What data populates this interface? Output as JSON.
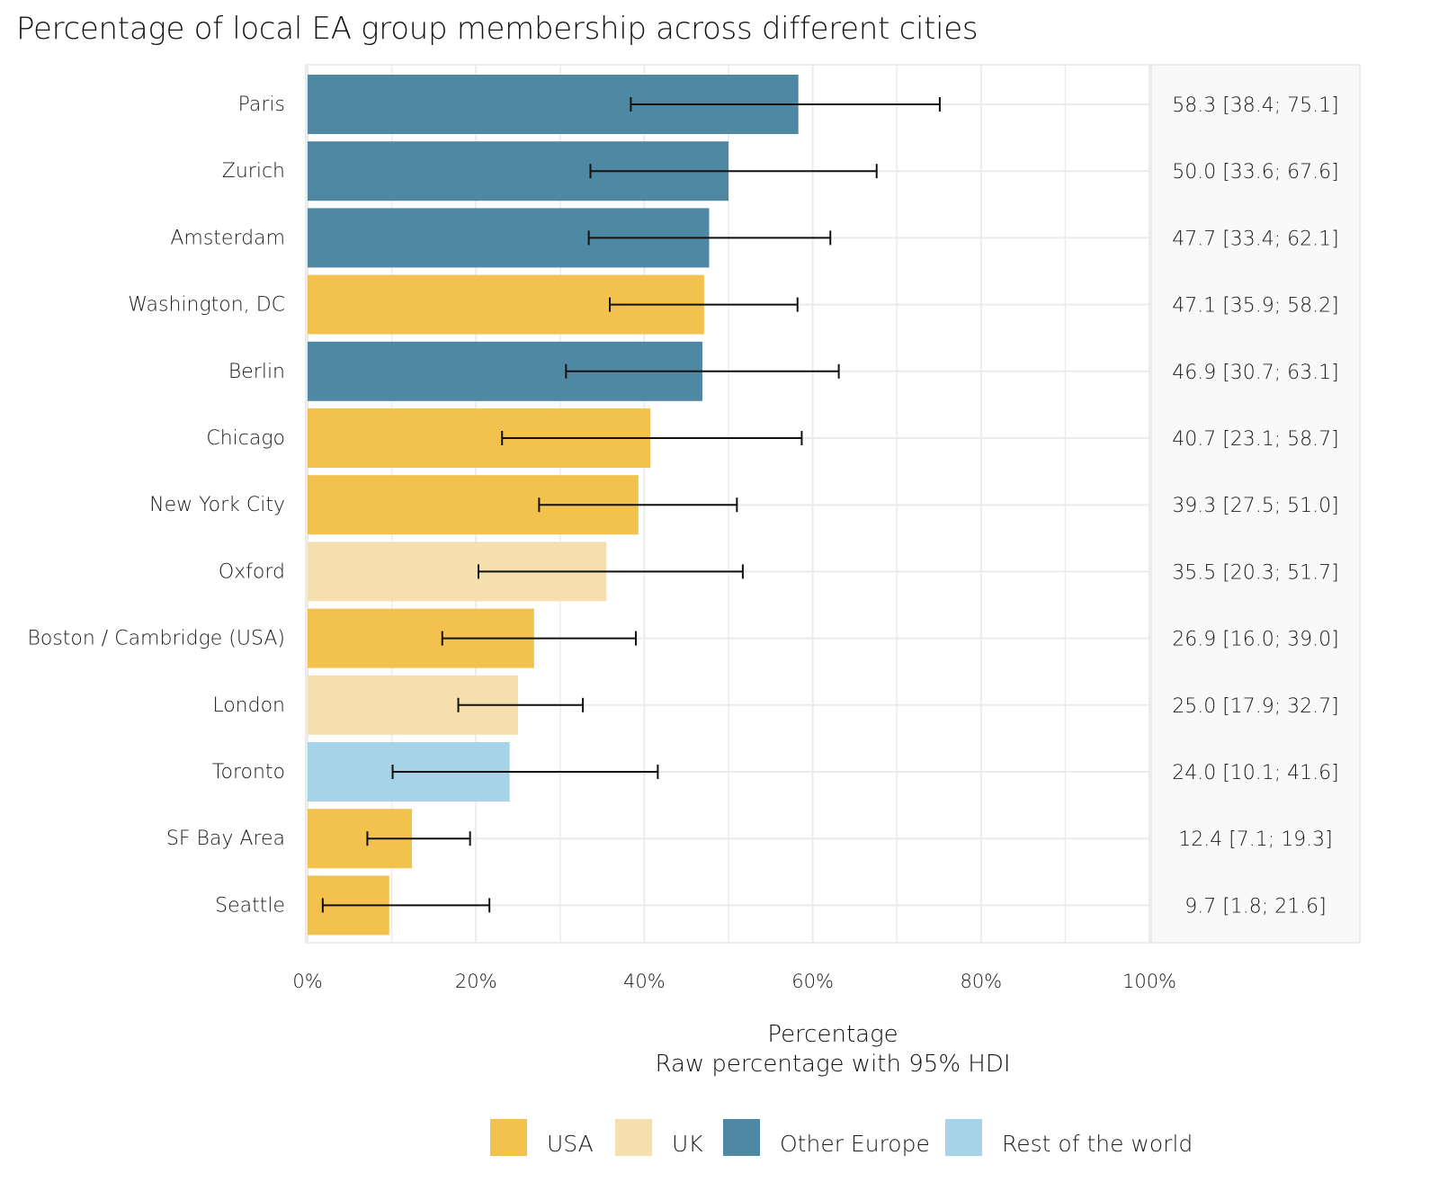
{
  "chart_data": {
    "type": "bar",
    "orientation": "horizontal",
    "title": "Percentage of local EA group membership across different cities",
    "xlabel": "Percentage",
    "xlabel_subtitle": "Raw percentage with 95% HDI",
    "ylabel": "",
    "xlim": [
      0,
      100
    ],
    "x_ticks": [
      0,
      20,
      40,
      60,
      80,
      100
    ],
    "x_tick_labels": [
      "0%",
      "20%",
      "40%",
      "60%",
      "80%",
      "100%"
    ],
    "grid": true,
    "legend_position": "bottom",
    "groups": [
      {
        "name": "USA",
        "color": "#F2C14E"
      },
      {
        "name": "UK",
        "color": "#F5DFAE"
      },
      {
        "name": "Other Europe",
        "color": "#4E88A3"
      },
      {
        "name": "Rest of the world",
        "color": "#A7D3E8"
      }
    ],
    "categories": [
      "Paris",
      "Zurich",
      "Amsterdam",
      "Washington, DC",
      "Berlin",
      "Chicago",
      "New York City",
      "Oxford",
      "Boston / Cambridge (USA)",
      "London",
      "Toronto",
      "SF Bay Area",
      "Seattle"
    ],
    "points": [
      {
        "city": "Paris",
        "group": "Other Europe",
        "value": 58.3,
        "lower": 38.4,
        "upper": 75.1,
        "label": "58.3 [38.4; 75.1]"
      },
      {
        "city": "Zurich",
        "group": "Other Europe",
        "value": 50.0,
        "lower": 33.6,
        "upper": 67.6,
        "label": "50.0 [33.6; 67.6]"
      },
      {
        "city": "Amsterdam",
        "group": "Other Europe",
        "value": 47.7,
        "lower": 33.4,
        "upper": 62.1,
        "label": "47.7 [33.4; 62.1]"
      },
      {
        "city": "Washington, DC",
        "group": "USA",
        "value": 47.1,
        "lower": 35.9,
        "upper": 58.2,
        "label": "47.1 [35.9; 58.2]"
      },
      {
        "city": "Berlin",
        "group": "Other Europe",
        "value": 46.9,
        "lower": 30.7,
        "upper": 63.1,
        "label": "46.9 [30.7; 63.1]"
      },
      {
        "city": "Chicago",
        "group": "USA",
        "value": 40.7,
        "lower": 23.1,
        "upper": 58.7,
        "label": "40.7 [23.1; 58.7]"
      },
      {
        "city": "New York City",
        "group": "USA",
        "value": 39.3,
        "lower": 27.5,
        "upper": 51.0,
        "label": "39.3 [27.5; 51.0]"
      },
      {
        "city": "Oxford",
        "group": "UK",
        "value": 35.5,
        "lower": 20.3,
        "upper": 51.7,
        "label": "35.5 [20.3; 51.7]"
      },
      {
        "city": "Boston / Cambridge (USA)",
        "group": "USA",
        "value": 26.9,
        "lower": 16.0,
        "upper": 39.0,
        "label": "26.9 [16.0; 39.0]"
      },
      {
        "city": "London",
        "group": "UK",
        "value": 25.0,
        "lower": 17.9,
        "upper": 32.7,
        "label": "25.0 [17.9; 32.7]"
      },
      {
        "city": "Toronto",
        "group": "Rest of the world",
        "value": 24.0,
        "lower": 10.1,
        "upper": 41.6,
        "label": "24.0 [10.1; 41.6]"
      },
      {
        "city": "SF Bay Area",
        "group": "USA",
        "value": 12.4,
        "lower": 7.1,
        "upper": 19.3,
        "label": "12.4 [7.1; 19.3]"
      },
      {
        "city": "Seattle",
        "group": "USA",
        "value": 9.7,
        "lower": 1.8,
        "upper": 21.6,
        "label": "9.7 [1.8; 21.6]"
      }
    ]
  }
}
